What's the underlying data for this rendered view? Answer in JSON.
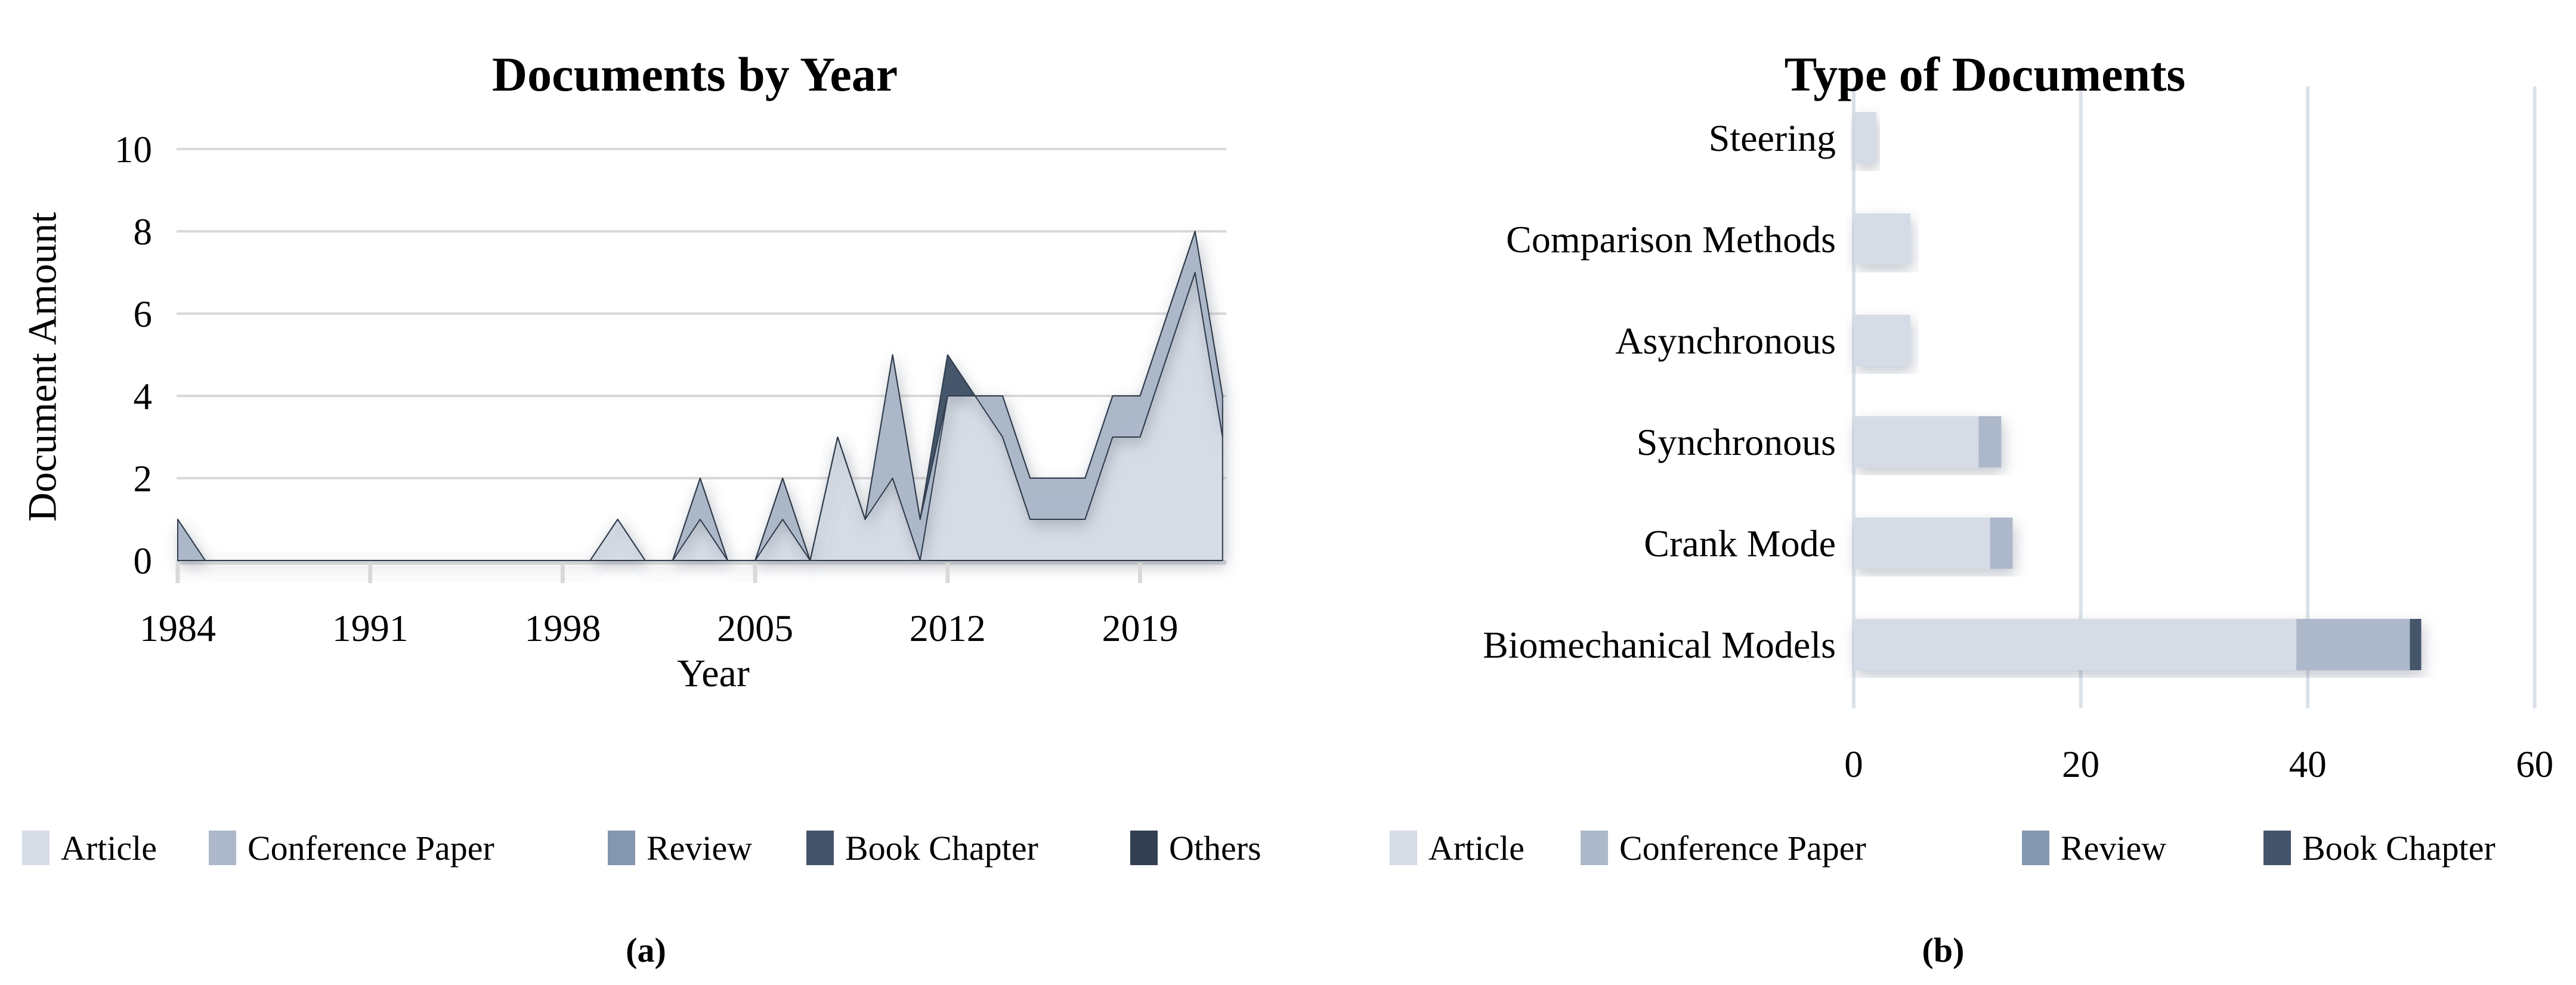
{
  "figure": {
    "caption_a": "(a)",
    "caption_b": "(b)"
  },
  "chart_data": [
    {
      "id": "documents_by_year",
      "type": "area",
      "title": "Documents by Year",
      "xlabel": "Year",
      "ylabel": "Document Amount",
      "x": [
        1984,
        1985,
        1986,
        1987,
        1988,
        1989,
        1990,
        1991,
        1992,
        1993,
        1994,
        1995,
        1996,
        1997,
        1998,
        1999,
        2000,
        2001,
        2002,
        2003,
        2004,
        2005,
        2006,
        2007,
        2008,
        2009,
        2010,
        2011,
        2012,
        2013,
        2014,
        2015,
        2016,
        2017,
        2018,
        2019,
        2020,
        2021,
        2022
      ],
      "x_ticks": [
        1984,
        1991,
        1998,
        2005,
        2012,
        2019
      ],
      "y_ticks": [
        0,
        2,
        4,
        6,
        8,
        10
      ],
      "ylim": [
        0,
        10
      ],
      "grid": "horizontal",
      "legend_position": "bottom",
      "series": [
        {
          "name": "Article",
          "color": "#D6DCE5",
          "values": [
            0,
            0,
            0,
            0,
            0,
            0,
            0,
            0,
            0,
            0,
            0,
            0,
            0,
            0,
            0,
            0,
            1,
            0,
            0,
            1,
            0,
            0,
            1,
            0,
            3,
            1,
            2,
            0,
            4,
            4,
            3,
            1,
            1,
            1,
            3,
            3,
            5,
            7,
            3
          ]
        },
        {
          "name": "Conference Paper",
          "color": "#ADB9CA",
          "values": [
            1,
            0,
            0,
            0,
            0,
            0,
            0,
            0,
            0,
            0,
            0,
            0,
            0,
            0,
            0,
            0,
            0,
            0,
            0,
            1,
            0,
            0,
            1,
            0,
            0,
            0,
            3,
            1,
            0,
            0,
            1,
            1,
            1,
            1,
            1,
            1,
            1,
            1,
            1
          ]
        },
        {
          "name": "Review",
          "color": "#8497B0",
          "values": [
            0,
            0,
            0,
            0,
            0,
            0,
            0,
            0,
            0,
            0,
            0,
            0,
            0,
            0,
            0,
            0,
            0,
            0,
            0,
            0,
            0,
            0,
            0,
            0,
            0,
            0,
            0,
            0,
            0,
            0,
            0,
            0,
            0,
            0,
            0,
            0,
            0,
            0,
            0
          ]
        },
        {
          "name": "Book Chapter",
          "color": "#44546A",
          "values": [
            0,
            0,
            0,
            0,
            0,
            0,
            0,
            0,
            0,
            0,
            0,
            0,
            0,
            0,
            0,
            0,
            0,
            0,
            0,
            0,
            0,
            0,
            0,
            0,
            0,
            0,
            0,
            0,
            1,
            0,
            0,
            0,
            0,
            0,
            0,
            0,
            0,
            0,
            0
          ]
        },
        {
          "name": "Others",
          "color": "#333F50",
          "values": [
            0,
            0,
            0,
            0,
            0,
            0,
            0,
            0,
            0,
            0,
            0,
            0,
            0,
            0,
            0,
            0,
            0,
            0,
            0,
            0,
            0,
            0,
            0,
            0,
            0,
            0,
            0,
            0,
            0,
            0,
            0,
            0,
            0,
            0,
            0,
            0,
            0,
            0,
            0
          ]
        }
      ]
    },
    {
      "id": "type_of_documents",
      "type": "bar",
      "orientation": "horizontal",
      "title": "Type of Documents",
      "categories": [
        "Steering",
        "Comparison Methods",
        "Asynchronous",
        "Synchronous",
        "Crank Mode",
        "Biomechanical Models"
      ],
      "x_ticks": [
        0,
        20,
        40,
        60
      ],
      "xlim": [
        0,
        60
      ],
      "grid": "vertical",
      "legend_position": "bottom",
      "series": [
        {
          "name": "Article",
          "color": "#D6DCE5",
          "values": [
            2,
            5,
            5,
            11,
            12,
            39
          ]
        },
        {
          "name": "Conference Paper",
          "color": "#ADB9CA",
          "values": [
            0,
            0,
            0,
            2,
            2,
            10
          ]
        },
        {
          "name": "Review",
          "color": "#8497B0",
          "values": [
            0,
            0,
            0,
            0,
            0,
            0
          ]
        },
        {
          "name": "Book Chapter",
          "color": "#44546A",
          "values": [
            0,
            0,
            0,
            0,
            0,
            1
          ]
        }
      ]
    }
  ]
}
